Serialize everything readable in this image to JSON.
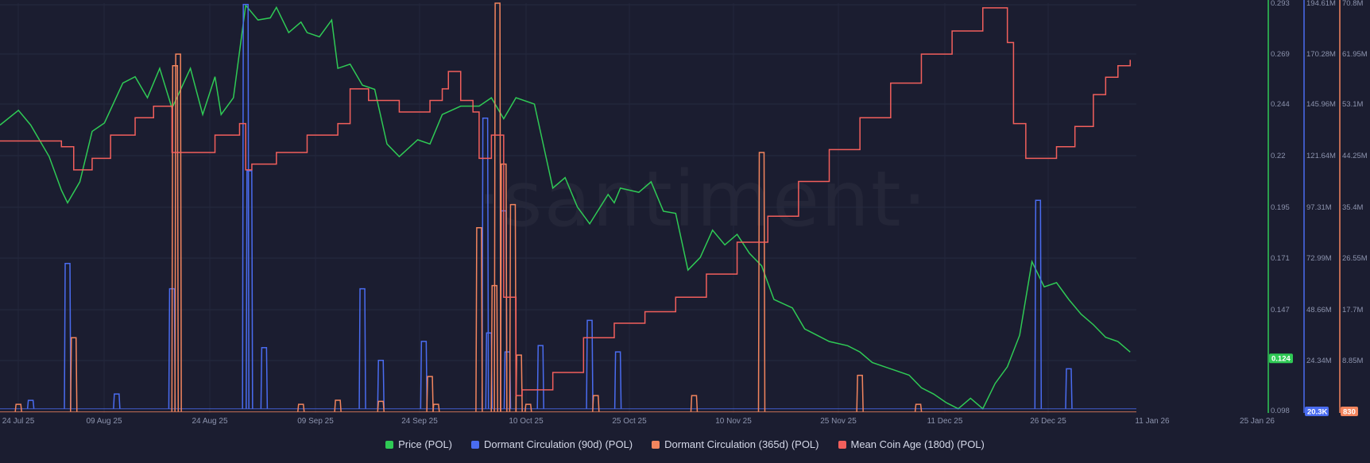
{
  "watermark": "·santiment·",
  "chart_data": {
    "type": "line",
    "x_ticks": [
      "24 Jul 25",
      "09 Aug 25",
      "24 Aug 25",
      "09 Sep 25",
      "24 Sep 25",
      "10 Oct 25",
      "25 Oct 25",
      "10 Nov 25",
      "25 Nov 25",
      "11 Dec 25",
      "26 Dec 25",
      "11 Jan 26",
      "25 Jan 26"
    ],
    "x_range": [
      "2025-07-24",
      "2026-01-25"
    ],
    "axes": {
      "price": {
        "ticks": [
          "0.293",
          "0.269",
          "0.244",
          "0.22",
          "0.195",
          "0.171",
          "0.147",
          "0.122",
          "0.098"
        ],
        "range": [
          0.098,
          0.293
        ],
        "current": "0.124",
        "color": "#2fca55"
      },
      "dormant_90d": {
        "ticks": [
          "194.61M",
          "170.28M",
          "145.96M",
          "121.64M",
          "97.31M",
          "72.99M",
          "48.66M",
          "24.34M"
        ],
        "range": [
          0,
          194610000
        ],
        "current": "20.3K",
        "color": "#4a6cf0"
      },
      "mean_coin_age": {
        "ticks": [
          "70.8M",
          "61.95M",
          "53.1M",
          "44.25M",
          "35.4M",
          "26.55M",
          "17.7M",
          "8.85M"
        ],
        "range": [
          0,
          70800000
        ],
        "current": "830",
        "color": "#f3855e"
      }
    },
    "series": [
      {
        "name": "Price (POL)",
        "axis": "price",
        "color": "#2fca55",
        "style": "line",
        "x": [
          0,
          3,
          5,
          8,
          10,
          11,
          13,
          15,
          17,
          20,
          22,
          24,
          26,
          28,
          31,
          33,
          35,
          36,
          38,
          40,
          42,
          44,
          45,
          47,
          49,
          50,
          52,
          54,
          55,
          57,
          59,
          61,
          63,
          65,
          68,
          70,
          72,
          75,
          78,
          80,
          82,
          84,
          87,
          90,
          92,
          94,
          96,
          99,
          100,
          101,
          104,
          106,
          108,
          110,
          112,
          114,
          116,
          118,
          120,
          122,
          124,
          126,
          129,
          131,
          133,
          135,
          138,
          140,
          142,
          144,
          146,
          148,
          150,
          152,
          154,
          156,
          158,
          160,
          162,
          164,
          166,
          168,
          170,
          172,
          174,
          176,
          178,
          180,
          182,
          184
        ],
        "y": [
          0.235,
          0.242,
          0.235,
          0.22,
          0.204,
          0.198,
          0.208,
          0.232,
          0.236,
          0.255,
          0.258,
          0.248,
          0.262,
          0.243,
          0.262,
          0.24,
          0.258,
          0.24,
          0.248,
          0.292,
          0.285,
          0.286,
          0.291,
          0.279,
          0.284,
          0.279,
          0.277,
          0.285,
          0.262,
          0.264,
          0.254,
          0.252,
          0.226,
          0.22,
          0.228,
          0.226,
          0.24,
          0.244,
          0.244,
          0.248,
          0.238,
          0.248,
          0.245,
          0.205,
          0.21,
          0.196,
          0.188,
          0.202,
          0.198,
          0.205,
          0.203,
          0.208,
          0.194,
          0.193,
          0.166,
          0.172,
          0.185,
          0.178,
          0.183,
          0.174,
          0.168,
          0.152,
          0.148,
          0.138,
          0.135,
          0.132,
          0.13,
          0.127,
          0.122,
          0.12,
          0.118,
          0.116,
          0.11,
          0.107,
          0.103,
          0.1,
          0.105,
          0.1,
          0.112,
          0.12,
          0.135,
          0.17,
          0.158,
          0.16,
          0.152,
          0.145,
          0.14,
          0.134,
          0.132,
          0.127
        ]
      },
      {
        "name": "Dormant Circulation (90d) (POL)",
        "axis": "dormant_90d",
        "color": "#4a6cf0",
        "style": "spike",
        "baseline": 2000000,
        "spikes_x": [
          5,
          11,
          19,
          28,
          40,
          40.6,
          43,
          59,
          62,
          69,
          79,
          79.6,
          82,
          82.6,
          88,
          96,
          100.6,
          169,
          174
        ],
        "spikes_y": [
          6000000,
          71000000,
          9000000,
          59000000,
          194000000,
          115000000,
          31000000,
          59000000,
          25000000,
          34000000,
          140000000,
          38000000,
          96000000,
          29000000,
          32000000,
          44000000,
          29000000,
          101000000,
          21000000
        ]
      },
      {
        "name": "Dormant Circulation (365d) (POL)",
        "axis": "mean_coin_age",
        "color": "#f3855e",
        "style": "spike",
        "baseline": 200000,
        "spikes_x": [
          3,
          12,
          28.5,
          29,
          49,
          55,
          62,
          70,
          71,
          78,
          80.5,
          81,
          82,
          83.5,
          84.5,
          86,
          97,
          113,
          124,
          140,
          149.5
        ],
        "spikes_y": [
          1500000,
          13000000,
          60000000,
          62000000,
          1500000,
          2200000,
          2000000,
          6300000,
          1500000,
          32000000,
          22000000,
          70800000,
          43000000,
          36000000,
          10000000,
          1500000,
          3000000,
          3000000,
          45000000,
          6500000,
          1500000
        ]
      },
      {
        "name": "Mean Coin Age (180d) (POL)",
        "axis": "mean_coin_age",
        "color": "#f25f5c",
        "style": "step",
        "x": [
          0,
          5,
          10,
          12,
          15,
          18,
          22,
          25,
          28,
          30,
          35,
          39,
          40,
          41,
          45,
          50,
          55,
          57,
          60,
          65,
          70,
          72,
          73,
          75,
          77,
          78,
          80,
          82,
          84,
          85,
          90,
          95,
          100,
          105,
          110,
          115,
          120,
          125,
          130,
          135,
          140,
          145,
          150,
          155,
          160,
          163,
          164,
          165,
          167,
          170,
          172,
          175,
          178,
          180,
          182,
          184
        ],
        "y": [
          47000000,
          47000000,
          46000000,
          42000000,
          44000000,
          48000000,
          51000000,
          53000000,
          45000000,
          45000000,
          48000000,
          50000000,
          42000000,
          43000000,
          45000000,
          48000000,
          50000000,
          56000000,
          54000000,
          52000000,
          54000000,
          56000000,
          59000000,
          54000000,
          52000000,
          44000000,
          48000000,
          20000000,
          3000000,
          4000000,
          7000000,
          13000000,
          15500000,
          17500000,
          20000000,
          24000000,
          29500000,
          34000000,
          40000000,
          45500000,
          51000000,
          57000000,
          62000000,
          66000000,
          70000000,
          70000000,
          64000000,
          50000000,
          44000000,
          44000000,
          46000000,
          49500000,
          55000000,
          58000000,
          60000000,
          61000000
        ]
      }
    ],
    "legend_position": "bottom-center"
  },
  "legend": [
    {
      "label": "Price (POL)",
      "color": "#2fca55"
    },
    {
      "label": "Dormant Circulation (90d) (POL)",
      "color": "#4a6cf0"
    },
    {
      "label": "Dormant Circulation (365d) (POL)",
      "color": "#f3855e"
    },
    {
      "label": "Mean Coin Age (180d) (POL)",
      "color": "#f25f5c"
    }
  ]
}
